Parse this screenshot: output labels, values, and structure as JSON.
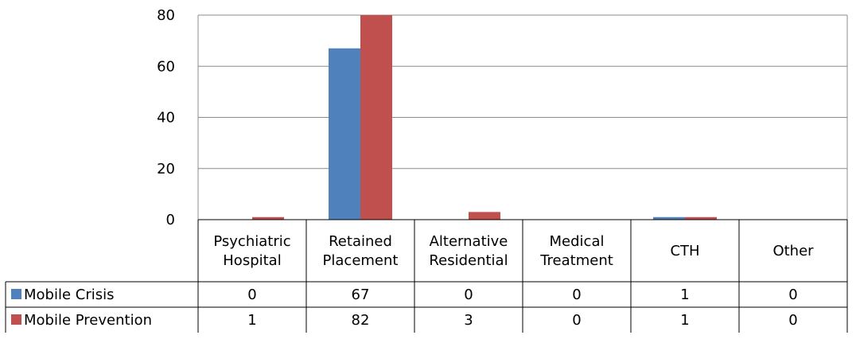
{
  "chart_data": {
    "type": "bar",
    "categories": [
      [
        "Psychiatric",
        "Hospital"
      ],
      [
        "Retained",
        "Placement"
      ],
      [
        "Alternative",
        "Residential"
      ],
      [
        "Medical",
        "Treatment"
      ],
      [
        "CTH"
      ],
      [
        "Other"
      ]
    ],
    "series": [
      {
        "name": "Mobile Crisis",
        "color": "#4f81bd",
        "values": [
          0,
          67,
          0,
          0,
          1,
          0
        ],
        "labels": [
          "0",
          "67",
          "0",
          "0",
          "1",
          "0"
        ]
      },
      {
        "name": "Mobile Prevention",
        "color": "#c0504d",
        "values": [
          1,
          82,
          3,
          0,
          1,
          0
        ],
        "labels": [
          "1",
          "82",
          "3",
          "0",
          "1",
          "0"
        ]
      }
    ],
    "yticks": [
      "0",
      "20",
      "40",
      "60",
      "80"
    ],
    "ylim": [
      0,
      80
    ],
    "grid": true,
    "legend": "data-table"
  }
}
